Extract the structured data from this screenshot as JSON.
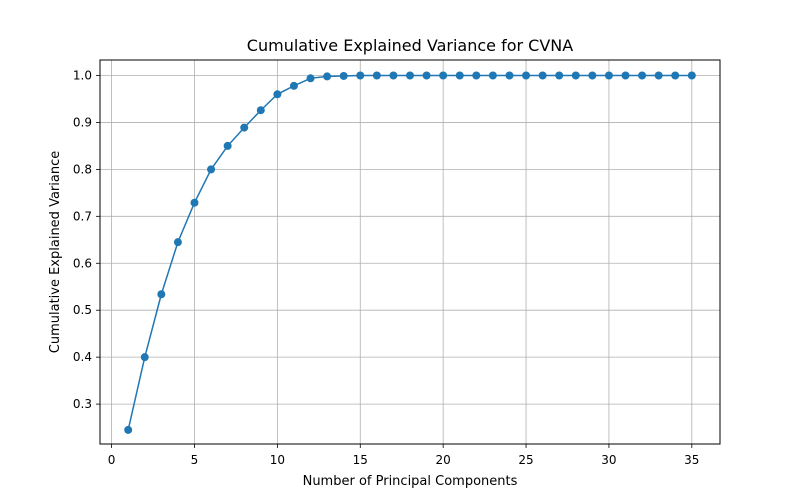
{
  "chart_data": {
    "type": "line",
    "title": "Cumulative Explained Variance for CVNA",
    "xlabel": "Number of Principal Components",
    "ylabel": "Cumulative Explained Variance",
    "xlim": [
      -0.7,
      36.7
    ],
    "ylim": [
      0.215,
      1.033
    ],
    "xticks": [
      0,
      5,
      10,
      15,
      20,
      25,
      30,
      35
    ],
    "xtick_labels": [
      "0",
      "5",
      "10",
      "15",
      "20",
      "25",
      "30",
      "35"
    ],
    "yticks": [
      0.3,
      0.4,
      0.5,
      0.6,
      0.7,
      0.8,
      0.9,
      1.0
    ],
    "ytick_labels": [
      "0.3",
      "0.4",
      "0.5",
      "0.6",
      "0.7",
      "0.8",
      "0.9",
      "1.0"
    ],
    "grid": true,
    "legend": "none",
    "series": [
      {
        "color": "#1f77b4",
        "marker": "circle",
        "x": [
          1,
          2,
          3,
          4,
          5,
          6,
          7,
          8,
          9,
          10,
          11,
          12,
          13,
          14,
          15,
          16,
          17,
          18,
          19,
          20,
          21,
          22,
          23,
          24,
          25,
          26,
          27,
          28,
          29,
          30,
          31,
          32,
          33,
          34,
          35
        ],
        "y": [
          0.245,
          0.4,
          0.534,
          0.645,
          0.729,
          0.8,
          0.85,
          0.889,
          0.926,
          0.96,
          0.978,
          0.994,
          0.998,
          0.999,
          1.0,
          1.0,
          1.0,
          1.0,
          1.0,
          1.0,
          1.0,
          1.0,
          1.0,
          1.0,
          1.0,
          1.0,
          1.0,
          1.0,
          1.0,
          1.0,
          1.0,
          1.0,
          1.0,
          1.0,
          1.0
        ]
      }
    ]
  }
}
